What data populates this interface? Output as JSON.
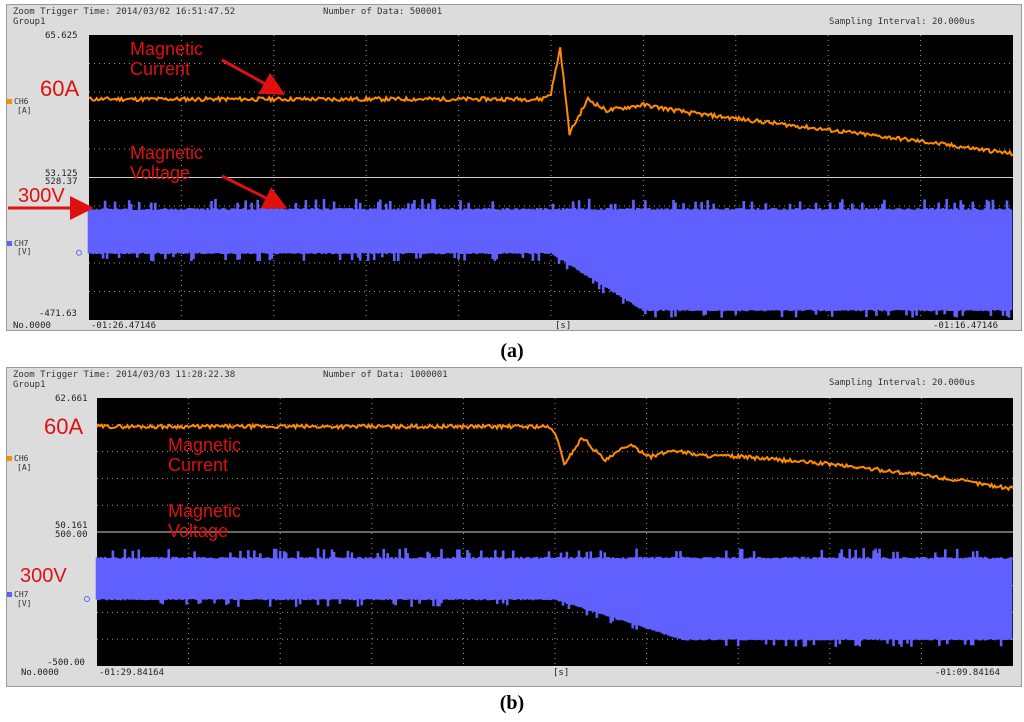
{
  "panels": [
    {
      "caption": "(a)",
      "header": {
        "trigger": "Zoom Trigger Time: 2014/03/02 16:51:47.52",
        "group": "Group1",
        "ndata": "Number of Data: 500001",
        "interval": "Sampling Interval:  20.000us"
      },
      "ch6": {
        "label": "CH6",
        "unit": "[A]",
        "top": "65.625",
        "bottom": "53.125",
        "color": "#ff8c00"
      },
      "ch7": {
        "label": "CH7",
        "unit": "[V]",
        "top": "528.37",
        "bottom": "-471.63",
        "color": "#6060ff"
      },
      "footer": {
        "no": "No.0000",
        "start": "-01:26.47146",
        "unit": "[s]",
        "end": "-01:16.47146"
      },
      "annotations": {
        "current_value": "60A",
        "current_name": "Magnetic\nCurrent",
        "voltage_value": "300V",
        "voltage_name": "Magnetic\nVoltage"
      }
    },
    {
      "caption": "(b)",
      "header": {
        "trigger": "Zoom Trigger Time: 2014/03/03 11:28:22.38",
        "group": "Group1",
        "ndata": "Number of Data: 1000001",
        "interval": "Sampling Interval:  20.000us"
      },
      "ch6": {
        "label": "CH6",
        "unit": "[A]",
        "top": "62.661",
        "bottom": "50.161",
        "color": "#ff8c00"
      },
      "ch7": {
        "label": "CH7",
        "unit": "[V]",
        "top": "500.00",
        "bottom": "-500.00",
        "color": "#6060ff"
      },
      "footer": {
        "no": "No.0000",
        "start": "-01:29.84164",
        "unit": "[s]",
        "end": "-01:09.84164"
      },
      "annotations": {
        "current_value": "60A",
        "current_name": "Magnetic\nCurrent",
        "voltage_value": "300V",
        "voltage_name": "Magnetic\nVoltage"
      }
    }
  ],
  "chart_data": [
    {
      "type": "line",
      "title": "",
      "xlabel": "[s]",
      "x_range": [
        "-01:26.47146",
        "-01:16.47146"
      ],
      "series": [
        {
          "name": "Magnetic Current",
          "channel": "CH6",
          "unit": "A",
          "ylim": [
            53.125,
            65.625
          ],
          "x_frac": [
            0,
            0.49,
            0.5,
            0.51,
            0.52,
            0.54,
            0.56,
            0.6,
            0.65,
            0.7,
            0.8,
            0.9,
            1.0
          ],
          "values": [
            60,
            60,
            60.5,
            64.5,
            57,
            60,
            59,
            59.5,
            58.8,
            58.3,
            57.3,
            56.3,
            55.2
          ]
        },
        {
          "name": "Magnetic Voltage",
          "channel": "CH7",
          "unit": "V",
          "ylim": [
            -471.63,
            528.37
          ],
          "x_frac": [
            0,
            0.5,
            0.6,
            1.0
          ],
          "values_high": [
            300,
            300,
            300,
            300
          ],
          "values_low": [
            0,
            0,
            -400,
            -400
          ]
        }
      ]
    },
    {
      "type": "line",
      "title": "",
      "xlabel": "[s]",
      "x_range": [
        "-01:29.84164",
        "-01:09.84164"
      ],
      "series": [
        {
          "name": "Magnetic Current",
          "channel": "CH6",
          "unit": "A",
          "ylim": [
            50.161,
            62.661
          ],
          "x_frac": [
            0,
            0.49,
            0.5,
            0.51,
            0.53,
            0.555,
            0.58,
            0.605,
            0.63,
            0.66,
            0.7,
            0.8,
            0.9,
            1.0
          ],
          "values": [
            60,
            60,
            59.5,
            56.5,
            59,
            56.8,
            58.3,
            57.2,
            57.8,
            57.3,
            57.2,
            56.5,
            55.5,
            54.2
          ]
        },
        {
          "name": "Magnetic Voltage",
          "channel": "CH7",
          "unit": "V",
          "ylim": [
            -500,
            500
          ],
          "x_frac": [
            0,
            0.5,
            0.64,
            1.0
          ],
          "values_high": [
            300,
            300,
            300,
            300
          ],
          "values_low": [
            0,
            0,
            -300,
            -300
          ]
        }
      ]
    }
  ]
}
